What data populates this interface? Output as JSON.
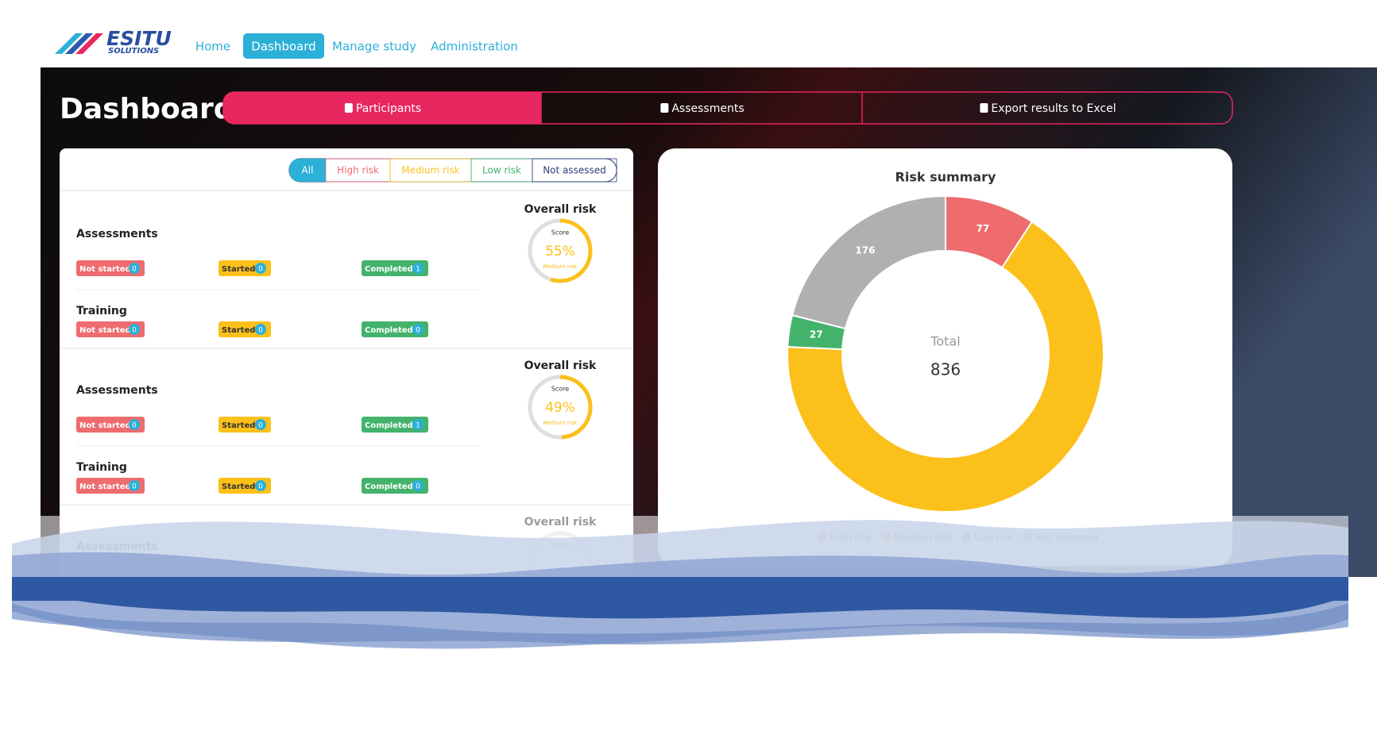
{
  "nav": {
    "logo": "ESITU",
    "logo_sub": "SOLUTIONS",
    "items": [
      "Home",
      "Dashboard",
      "Manage study",
      "Administration"
    ],
    "active": 1
  },
  "page_title": "Dashboard",
  "tabs": {
    "items": [
      "Participants",
      "Assessments",
      "Export results to Excel"
    ],
    "active": 0
  },
  "filters": {
    "items": [
      "All",
      "High risk",
      "Medium risk",
      "Low risk",
      "Not assessed"
    ],
    "active": 0
  },
  "participants": [
    {
      "overall_label": "Overall risk",
      "score_caption": "Score",
      "score": 55,
      "score_label": "55%",
      "risk": "Medium risk",
      "sections": [
        {
          "title": "Assessments",
          "statuses": [
            {
              "label": "Not started",
              "count": 0
            },
            {
              "label": "Started",
              "count": 0
            },
            {
              "label": "Completed",
              "count": 1
            }
          ]
        },
        {
          "title": "Training",
          "statuses": [
            {
              "label": "Not started",
              "count": 0
            },
            {
              "label": "Started",
              "count": 0
            },
            {
              "label": "Completed",
              "count": 0
            }
          ]
        }
      ]
    },
    {
      "overall_label": "Overall risk",
      "score_caption": "Score",
      "score": 49,
      "score_label": "49%",
      "risk": "Medium risk",
      "sections": [
        {
          "title": "Assessments",
          "statuses": [
            {
              "label": "Not started",
              "count": 0
            },
            {
              "label": "Started",
              "count": 0
            },
            {
              "label": "Completed",
              "count": 1
            }
          ]
        },
        {
          "title": "Training",
          "statuses": [
            {
              "label": "Not started",
              "count": 0
            },
            {
              "label": "Started",
              "count": 0
            },
            {
              "label": "Completed",
              "count": 0
            }
          ]
        }
      ]
    },
    {
      "overall_label": "Overall risk",
      "score_caption": "Score",
      "sections": [
        {
          "title": "Assessments"
        }
      ]
    }
  ],
  "chart_data": {
    "type": "donut",
    "title": "Risk summary",
    "center_label": "Total",
    "total": 836,
    "categories": [
      "High risk",
      "Medium risk",
      "Low risk",
      "Not assessed"
    ],
    "values": [
      77,
      556,
      27,
      176
    ],
    "colors": [
      "#ee6b6e",
      "#fcc01a",
      "#43b36c",
      "#b0b0b0"
    ]
  }
}
